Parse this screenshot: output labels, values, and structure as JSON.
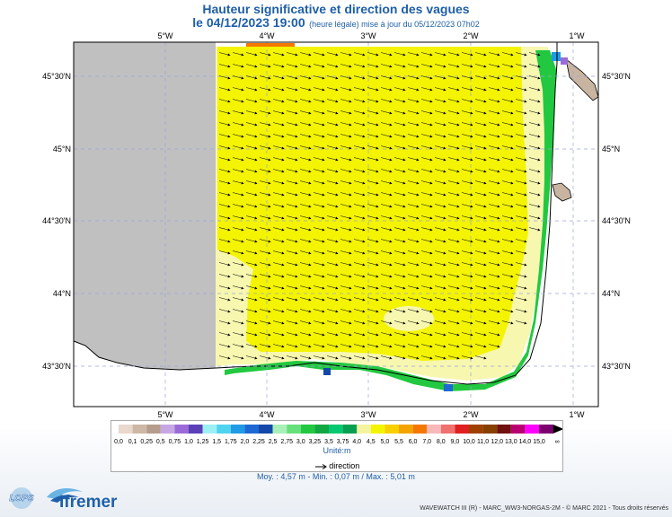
{
  "title": "Hauteur significative et direction des vagues",
  "subtitle": {
    "datetime": "le 04/12/2023 19:00",
    "note": "(heure légale) mise à jour du 05/12/2023 07h02"
  },
  "axes": {
    "lon_labels": [
      "5°W",
      "4°W",
      "3°W",
      "2°W",
      "1°W"
    ],
    "lat_labels": [
      "45°30'N",
      "45°N",
      "44°30'N",
      "44°N",
      "43°30'N"
    ]
  },
  "legend": {
    "ticks": [
      "0,0",
      "0,1",
      "0,25",
      "0,5",
      "0,75",
      "1,0",
      "1,25",
      "1,5",
      "1,75",
      "2,0",
      "2,25",
      "2,5",
      "2,75",
      "3,0",
      "3,25",
      "3,5",
      "3,75",
      "4,0",
      "4,5",
      "5,0",
      "5,5",
      "6,0",
      "7,0",
      "8,0",
      "9,0",
      "10,0",
      "11,0",
      "12,0",
      "13,0",
      "14,0",
      "15,0"
    ],
    "colors": [
      "#e9d8cc",
      "#cdb7a6",
      "#b59c8c",
      "#c7a6e4",
      "#9a6bd8",
      "#5a3fb8",
      "#9cf0f4",
      "#4fd4f0",
      "#1e9be4",
      "#1e68d4",
      "#1448a8",
      "#a8f0b8",
      "#66e07a",
      "#22c840",
      "#10a840",
      "#06c870",
      "#06a050",
      "#f4f4a0",
      "#f4f400",
      "#f8d000",
      "#f4a400",
      "#f47800",
      "#f8b8b8",
      "#f07070",
      "#e02020",
      "#a04000",
      "#884000",
      "#701010",
      "#b80070",
      "#ff00ff",
      "#7c0070"
    ],
    "overflow_symbol": "∞",
    "unit": "Unité:m",
    "direction_label": "direction"
  },
  "stats": "Moy. : 4,57 m   -   Min. : 0,07 m / Max. : 5,01 m",
  "footer": "WAVEWATCH III (R) - MARC_WW3-NORGAS-2M - © MARC 2021 - Tous droits réservés",
  "logos": {
    "lops": "LOPS",
    "ifremer": "Ifremer"
  }
}
